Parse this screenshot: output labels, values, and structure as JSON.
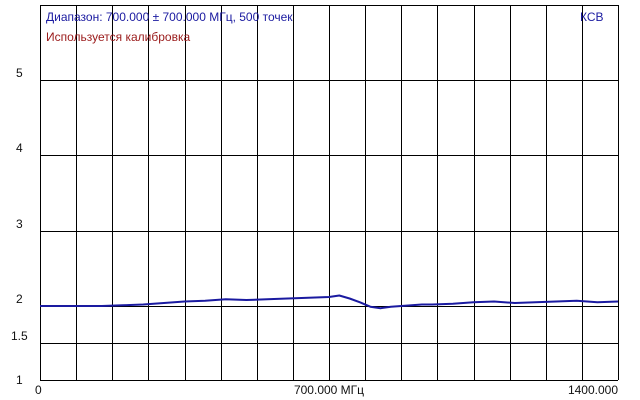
{
  "header": {
    "range_text": "Диапазон: 700.000 ± 700.000 МГц, 500 точек",
    "calibration_text": "Используется калибровка",
    "mode_text": "КСВ"
  },
  "colors": {
    "grid": "#000000",
    "trace": "#1a1aa0",
    "range_text": "#1a1aa0",
    "calibration_text": "#9a1a1a"
  },
  "chart_data": {
    "type": "line",
    "title": "",
    "xlabel": "",
    "ylabel": "",
    "x_unit": "МГц",
    "xlim": [
      0,
      1400
    ],
    "ylim": [
      1,
      5.8
    ],
    "y_scale": "reflection (КСВ)",
    "grid": true,
    "x_tick_labels": [
      "0",
      "700.000 МГц",
      "1400.000"
    ],
    "y_tick_labels": [
      "1",
      "1.5",
      "2",
      "3",
      "4",
      "5"
    ],
    "y_tick_values": [
      1,
      1.5,
      2,
      3,
      4,
      5
    ],
    "series": [
      {
        "x": [
          0,
          50,
          100,
          150,
          200,
          250,
          300,
          350,
          400,
          450,
          500,
          550,
          600,
          650,
          700,
          725,
          750,
          775,
          800,
          825,
          850,
          875,
          900,
          925,
          950,
          1000,
          1050,
          1100,
          1150,
          1200,
          1250,
          1300,
          1350,
          1400
        ],
        "values": [
          2.0,
          2.0,
          2.0,
          2.0,
          2.01,
          2.02,
          2.04,
          2.06,
          2.07,
          2.09,
          2.08,
          2.09,
          2.1,
          2.11,
          2.12,
          2.14,
          2.1,
          2.05,
          1.99,
          1.97,
          1.99,
          2.0,
          2.01,
          2.02,
          2.02,
          2.03,
          2.05,
          2.06,
          2.04,
          2.05,
          2.06,
          2.07,
          2.05,
          2.06
        ]
      }
    ]
  }
}
